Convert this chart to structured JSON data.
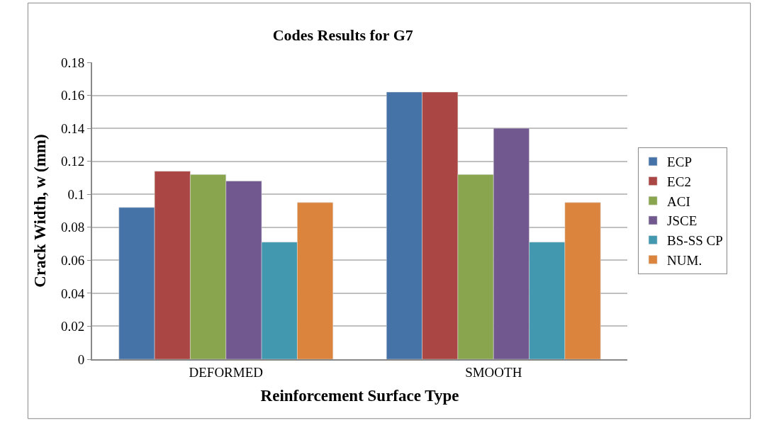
{
  "chart_data": {
    "type": "bar",
    "title": "Codes Results for G7",
    "xlabel": "Reinforcement Surface Type",
    "ylabel": "Crack Width, w (mm)",
    "categories": [
      "DEFORMED",
      "SMOOTH"
    ],
    "series": [
      {
        "name": "ECP",
        "color": "#4572a7",
        "values": [
          0.092,
          0.162
        ]
      },
      {
        "name": "EC2",
        "color": "#aa4643",
        "values": [
          0.114,
          0.162
        ]
      },
      {
        "name": "ACI",
        "color": "#89a54e",
        "values": [
          0.112,
          0.112
        ]
      },
      {
        "name": "JSCE",
        "color": "#71588f",
        "values": [
          0.108,
          0.14
        ]
      },
      {
        "name": "BS-SS CP",
        "color": "#4198af",
        "values": [
          0.071,
          0.071
        ]
      },
      {
        "name": "NUM.",
        "color": "#db843d",
        "values": [
          0.095,
          0.095
        ]
      }
    ],
    "ylim": [
      0,
      0.18
    ],
    "yticks": [
      0,
      0.02,
      0.04,
      0.06,
      0.08,
      0.1,
      0.12,
      0.14,
      0.16,
      0.18
    ],
    "grid": "y",
    "legend": "right"
  }
}
